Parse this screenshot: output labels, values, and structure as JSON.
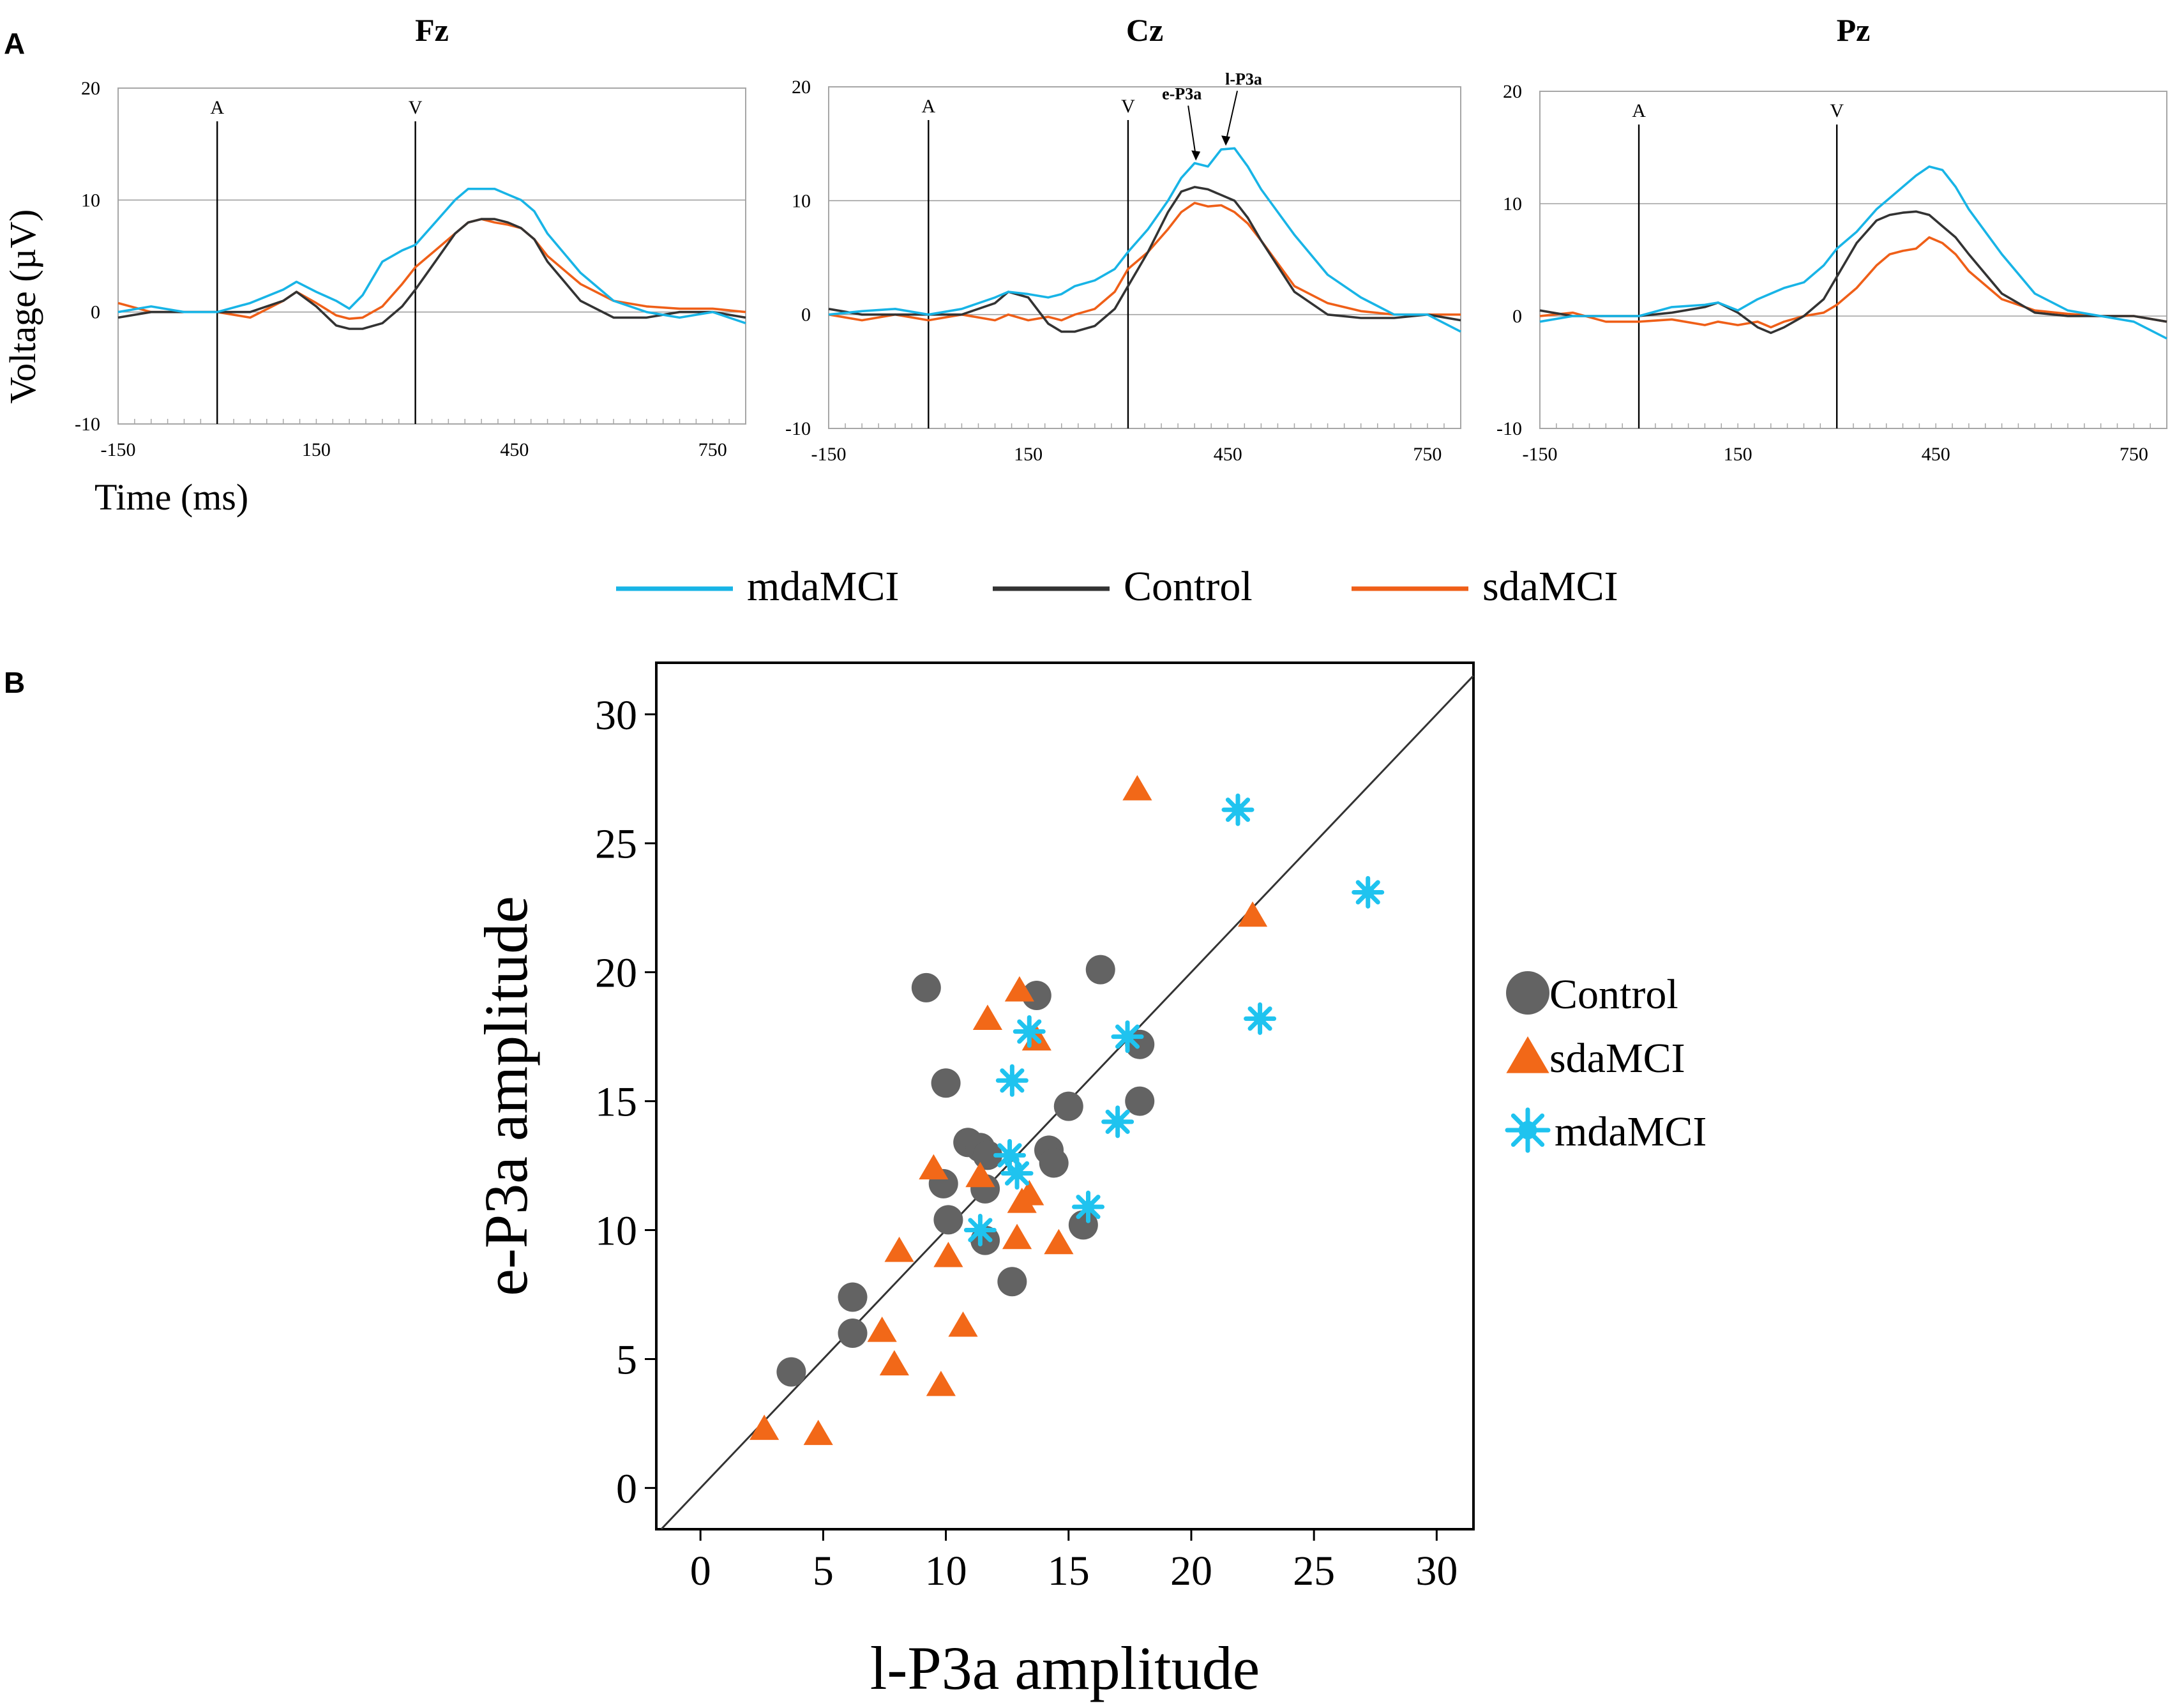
{
  "panel_labels": {
    "a": "A",
    "b": "B"
  },
  "colors": {
    "mdaMCI": "#18b4e6",
    "Control": "#333333",
    "sdaMCI": "#ef5f18",
    "control_marker": "#636363",
    "sdaMCI_marker": "#f26818",
    "mdaMCI_marker": "#1fc3ef"
  },
  "panel_a": {
    "xlabel": "Time (ms)",
    "ylabel": "Voltage (µV)",
    "legend": [
      {
        "name": "mdaMCI",
        "color": "#18b4e6"
      },
      {
        "name": "Control",
        "color": "#333333"
      },
      {
        "name": "sdaMCI",
        "color": "#ef5f18"
      }
    ]
  },
  "chart_data": [
    {
      "type": "line",
      "title": "Fz",
      "xlabel": "Time (ms)",
      "ylabel": "Voltage (µV)",
      "xlim": [
        -150,
        800
      ],
      "ylim": [
        -10,
        20
      ],
      "xticks": [
        -150,
        150,
        450,
        750
      ],
      "yticks": [
        -10,
        0,
        10,
        20
      ],
      "event_markers": [
        {
          "label": "A",
          "x": 0
        },
        {
          "label": "V",
          "x": 300
        }
      ],
      "annotations": [],
      "series": [
        {
          "name": "mdaMCI",
          "x": [
            -150,
            -100,
            -50,
            0,
            50,
            100,
            120,
            150,
            180,
            200,
            220,
            250,
            280,
            300,
            330,
            360,
            380,
            400,
            420,
            440,
            460,
            480,
            500,
            550,
            600,
            650,
            700,
            750,
            800
          ],
          "values": [
            0,
            0.5,
            0,
            0,
            0.8,
            2,
            2.7,
            1.8,
            1,
            0.3,
            1.5,
            4.5,
            5.5,
            6,
            8,
            10,
            11,
            11,
            11,
            10.5,
            10,
            9,
            7,
            3.5,
            1,
            0,
            -0.5,
            0,
            -1
          ]
        },
        {
          "name": "Control",
          "x": [
            -150,
            -100,
            -50,
            0,
            50,
            100,
            120,
            150,
            180,
            200,
            220,
            250,
            280,
            300,
            330,
            360,
            380,
            400,
            420,
            440,
            460,
            480,
            500,
            550,
            600,
            650,
            700,
            750,
            800
          ],
          "values": [
            -0.5,
            0,
            0,
            0,
            0,
            1,
            1.8,
            0.5,
            -1.2,
            -1.5,
            -1.5,
            -1,
            0.5,
            2,
            4.5,
            7,
            8,
            8.3,
            8.3,
            8,
            7.5,
            6.5,
            4.5,
            1,
            -0.5,
            -0.5,
            0,
            0,
            -0.5
          ]
        },
        {
          "name": "sdaMCI",
          "x": [
            -150,
            -100,
            -50,
            0,
            50,
            100,
            120,
            150,
            180,
            200,
            220,
            250,
            280,
            300,
            330,
            360,
            380,
            400,
            420,
            440,
            460,
            480,
            500,
            550,
            600,
            650,
            700,
            750,
            800
          ],
          "values": [
            0.8,
            0,
            0,
            0,
            -0.5,
            1,
            1.8,
            0.8,
            -0.3,
            -0.6,
            -0.5,
            0.5,
            2.5,
            4,
            5.5,
            7,
            8,
            8.3,
            8,
            7.8,
            7.5,
            6.5,
            5,
            2.5,
            1,
            0.5,
            0.3,
            0.3,
            0
          ]
        }
      ]
    },
    {
      "type": "line",
      "title": "Cz",
      "xlabel": "",
      "ylabel": "",
      "xlim": [
        -150,
        800
      ],
      "ylim": [
        -10,
        20
      ],
      "xticks": [
        -150,
        150,
        450,
        750
      ],
      "yticks": [
        -10,
        0,
        10,
        20
      ],
      "event_markers": [
        {
          "label": "A",
          "x": 0
        },
        {
          "label": "V",
          "x": 300
        }
      ],
      "annotations": [
        {
          "text": "e-P3a",
          "x": 400,
          "y": 13.3
        },
        {
          "text": "l-P3a",
          "x": 445,
          "y": 14.6
        }
      ],
      "series": [
        {
          "name": "mdaMCI",
          "x": [
            -150,
            -100,
            -50,
            0,
            50,
            100,
            120,
            150,
            180,
            200,
            220,
            250,
            280,
            300,
            330,
            360,
            380,
            400,
            420,
            440,
            460,
            480,
            500,
            550,
            600,
            650,
            700,
            750,
            800
          ],
          "values": [
            0,
            0.3,
            0.5,
            0,
            0.5,
            1.5,
            2,
            1.8,
            1.5,
            1.8,
            2.5,
            3,
            4,
            5.5,
            7.5,
            10,
            12,
            13.3,
            13,
            14.5,
            14.6,
            13,
            11,
            7,
            3.5,
            1.5,
            0,
            0,
            -1.5
          ]
        },
        {
          "name": "Control",
          "x": [
            -150,
            -100,
            -50,
            0,
            50,
            100,
            120,
            150,
            180,
            200,
            220,
            250,
            280,
            300,
            330,
            360,
            380,
            400,
            420,
            440,
            460,
            480,
            500,
            550,
            600,
            650,
            700,
            750,
            800
          ],
          "values": [
            0.5,
            0,
            0,
            0,
            0,
            1,
            2,
            1.5,
            -0.8,
            -1.5,
            -1.5,
            -1,
            0.5,
            2.5,
            5.5,
            9,
            10.8,
            11.2,
            11,
            10.5,
            10,
            8.5,
            6.5,
            2,
            0,
            -0.3,
            -0.3,
            0,
            -0.5
          ]
        },
        {
          "name": "sdaMCI",
          "x": [
            -150,
            -100,
            -50,
            0,
            50,
            100,
            120,
            150,
            180,
            200,
            220,
            250,
            280,
            300,
            330,
            360,
            380,
            400,
            420,
            440,
            460,
            480,
            500,
            550,
            600,
            650,
            700,
            750,
            800
          ],
          "values": [
            0,
            -0.5,
            0,
            -0.5,
            0,
            -0.5,
            0,
            -0.5,
            -0.2,
            -0.5,
            0,
            0.5,
            2,
            4,
            5.5,
            7.5,
            9,
            9.8,
            9.5,
            9.6,
            9,
            8,
            6.5,
            2.5,
            1,
            0.3,
            0,
            0,
            0
          ]
        }
      ]
    },
    {
      "type": "line",
      "title": "Pz",
      "xlabel": "",
      "ylabel": "",
      "xlim": [
        -150,
        800
      ],
      "ylim": [
        -10,
        20
      ],
      "xticks": [
        -150,
        150,
        450,
        750
      ],
      "yticks": [
        -10,
        0,
        10,
        20
      ],
      "event_markers": [
        {
          "label": "A",
          "x": 0
        },
        {
          "label": "V",
          "x": 300
        }
      ],
      "annotations": [],
      "series": [
        {
          "name": "mdaMCI",
          "x": [
            -150,
            -100,
            -50,
            0,
            50,
            100,
            120,
            150,
            180,
            200,
            220,
            250,
            280,
            300,
            330,
            360,
            380,
            400,
            420,
            440,
            460,
            480,
            500,
            550,
            600,
            650,
            700,
            750,
            800
          ],
          "values": [
            -0.5,
            0,
            0,
            0,
            0.8,
            1,
            1.2,
            0.5,
            1.5,
            2,
            2.5,
            3,
            4.5,
            6,
            7.5,
            9.5,
            10.5,
            11.5,
            12.5,
            13.3,
            13,
            11.5,
            9.5,
            5.5,
            2,
            0.5,
            0,
            -0.5,
            -2
          ]
        },
        {
          "name": "Control",
          "x": [
            -150,
            -100,
            -50,
            0,
            50,
            100,
            120,
            150,
            180,
            200,
            220,
            250,
            280,
            300,
            330,
            360,
            380,
            400,
            420,
            440,
            460,
            480,
            500,
            550,
            600,
            650,
            700,
            750,
            800
          ],
          "values": [
            0.5,
            0,
            0,
            0,
            0.3,
            0.8,
            1.2,
            0.3,
            -1,
            -1.5,
            -1,
            0,
            1.5,
            3.5,
            6.5,
            8.5,
            9,
            9.2,
            9.3,
            9,
            8,
            7,
            5.5,
            2,
            0.3,
            0,
            0,
            0,
            -0.5
          ]
        },
        {
          "name": "sdaMCI",
          "x": [
            -150,
            -100,
            -50,
            0,
            50,
            100,
            120,
            150,
            180,
            200,
            220,
            250,
            280,
            300,
            330,
            360,
            380,
            400,
            420,
            440,
            460,
            480,
            500,
            550,
            600,
            650,
            700,
            750,
            800
          ],
          "values": [
            0,
            0.3,
            -0.5,
            -0.5,
            -0.3,
            -0.8,
            -0.5,
            -0.8,
            -0.5,
            -1,
            -0.5,
            0,
            0.3,
            1,
            2.5,
            4.5,
            5.5,
            5.8,
            6,
            7,
            6.5,
            5.5,
            4,
            1.5,
            0.5,
            0.2,
            0,
            0,
            -0.5
          ]
        }
      ]
    },
    {
      "type": "scatter",
      "title": "",
      "xlabel": "l-P3a amplitude",
      "ylabel": "e-P3a amplitude",
      "xlim": [
        -1.8,
        31.5
      ],
      "ylim": [
        -1.6,
        32
      ],
      "xticks": [
        0,
        5,
        10,
        15,
        20,
        25,
        30
      ],
      "yticks": [
        0,
        5,
        10,
        15,
        20,
        25,
        30
      ],
      "reference_line": "identity (y = x)",
      "legend": [
        "Control",
        "sdaMCI",
        "mdaMCI"
      ],
      "series": [
        {
          "name": "Control",
          "marker": "circle",
          "x": [
            3.7,
            6.2,
            6.2,
            9.2,
            9.9,
            10.0,
            10.1,
            10.9,
            11.4,
            11.6,
            11.7,
            11.6,
            12.7,
            13.7,
            14.2,
            14.4,
            15.0,
            15.6,
            16.3,
            17.9,
            17.9
          ],
          "y": [
            4.5,
            7.4,
            6.0,
            19.4,
            11.8,
            15.7,
            10.4,
            13.4,
            13.2,
            11.6,
            12.9,
            9.6,
            8.0,
            19.1,
            13.1,
            12.6,
            14.8,
            10.2,
            20.1,
            17.2,
            15.0
          ]
        },
        {
          "name": "sdaMCI",
          "marker": "triangle",
          "x": [
            2.6,
            4.8,
            7.4,
            7.9,
            8.1,
            9.5,
            9.8,
            10.1,
            10.7,
            11.4,
            11.7,
            12.9,
            13.0,
            13.1,
            13.4,
            13.7,
            14.6,
            17.8,
            22.5
          ],
          "y": [
            2.3,
            2.1,
            6.1,
            4.8,
            9.2,
            12.4,
            4.0,
            9.0,
            6.3,
            12.1,
            18.2,
            9.7,
            19.3,
            11.1,
            11.4,
            17.4,
            9.5,
            27.1,
            22.2
          ]
        },
        {
          "name": "mdaMCI",
          "marker": "asterisk",
          "x": [
            11.4,
            12.6,
            12.7,
            12.9,
            13.4,
            15.8,
            17.0,
            17.4,
            21.9,
            22.8,
            27.2
          ],
          "y": [
            10.0,
            12.9,
            15.8,
            12.2,
            17.7,
            10.9,
            14.2,
            17.5,
            26.3,
            18.2,
            23.1
          ]
        }
      ]
    }
  ]
}
